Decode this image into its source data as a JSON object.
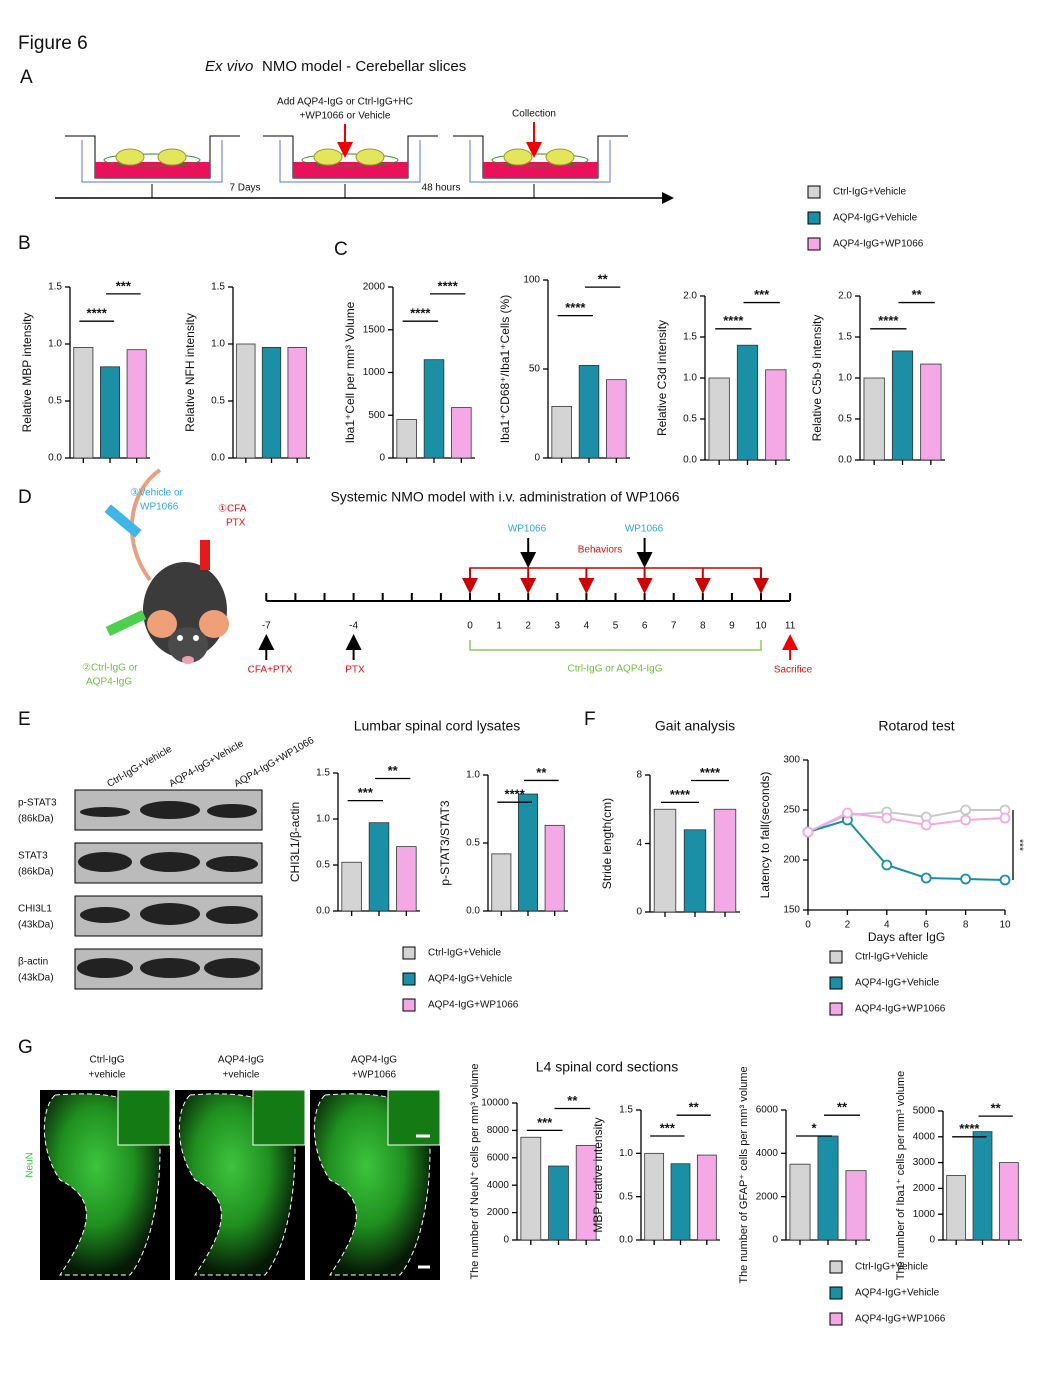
{
  "figure": {
    "title": "Figure 6",
    "panels": [
      "A",
      "B",
      "C",
      "D",
      "E",
      "F",
      "G"
    ],
    "legend": {
      "names": [
        "Ctrl-IgG+Vehicle",
        "AQP4-IgG+Vehicle",
        "AQP4-IgG+WP1066"
      ],
      "colors": [
        "#d4d4d4",
        "#1a8fa6",
        "#f4a9e6"
      ]
    },
    "a": {
      "title_italic": "Ex vivo",
      "title": "NMO model - Cerebellar slices",
      "add_label": [
        "Add AQP4-IgG or Ctrl-IgG+HC",
        "+WP1066 or Vehicle"
      ],
      "collection": "Collection",
      "durations": [
        "7 Days",
        "48 hours"
      ]
    },
    "d": {
      "title": "Systemic NMO model with i.v. administration of WP1066",
      "inject": [
        "③Vehicle or",
        "WP1066"
      ],
      "cfa": [
        "①CFA",
        "PTX"
      ],
      "igg": [
        "②Ctrl-IgG or",
        "AQP4-IgG"
      ],
      "days": [
        -7,
        -4,
        0,
        1,
        2,
        3,
        4,
        5,
        6,
        7,
        8,
        9,
        10,
        11
      ],
      "wp1066": "WP1066",
      "behaviors": "Behaviors",
      "cfa_ptx": "CFA+PTX",
      "ptx": "PTX",
      "treatment": "Ctrl-IgG or AQP4-IgG",
      "sacrifice": "Sacrifice"
    },
    "e": {
      "lanes": [
        "Ctrl-IgG+Vehicle",
        "AQP4-IgG+Vehicle",
        "AQP4-IgG+WP1066"
      ],
      "blots": [
        [
          "p-STAT3",
          "(86kDa)"
        ],
        [
          "STAT3",
          "(86kDa)"
        ],
        [
          "CHI3L1",
          "(43kDa)"
        ],
        [
          "β-actin",
          "(43kDa)"
        ]
      ],
      "title": "Lumbar spinal cord lysates"
    },
    "g": {
      "columns": [
        [
          "Ctrl-IgG",
          "+vehicle"
        ],
        [
          "AQP4-IgG",
          "+vehicle"
        ],
        [
          "AQP4-IgG",
          "+WP1066"
        ]
      ],
      "stain": "NeuN",
      "title": "L4 spinal cord sections"
    }
  },
  "chart_data": [
    {
      "type": "bar",
      "ylabel": "Relative MBP intensity",
      "categories": [
        null,
        null,
        null
      ],
      "values": [
        0.97,
        0.8,
        0.95
      ],
      "ylim": [
        0,
        1.5
      ],
      "yticks": [
        {
          "value": 0,
          "label": "0.0"
        },
        0.5,
        {
          "value": 1,
          "label": "1.0"
        },
        1.5
      ],
      "significance": [
        "****",
        "***"
      ]
    },
    {
      "type": "bar",
      "ylabel": "Relative NFH intensity",
      "categories": [
        null,
        null,
        null
      ],
      "values": [
        1.0,
        0.97,
        0.97
      ],
      "ylim": [
        0,
        1.5
      ],
      "yticks": [
        {
          "value": 0,
          "label": "0.0"
        },
        0.5,
        {
          "value": 1,
          "label": "1.0"
        },
        1.5
      ],
      "significance": []
    },
    {
      "type": "bar",
      "ylabel": "Iba1⁺Cell per mm³ Volume",
      "categories": [
        null,
        null,
        null
      ],
      "values": [
        450,
        1150,
        590
      ],
      "ylim": [
        0,
        2000
      ],
      "yticks": [
        0,
        500,
        1000,
        1500,
        2000
      ],
      "significance": [
        "****",
        "****"
      ]
    },
    {
      "type": "bar",
      "ylabel": "Iba1⁺CD68⁺/Iba1⁺Cells (%)",
      "categories": [
        null,
        null,
        null
      ],
      "values": [
        29,
        52,
        44
      ],
      "ylim": [
        0,
        100
      ],
      "yticks": [
        0,
        50,
        100
      ],
      "significance": [
        "****",
        "**"
      ]
    },
    {
      "type": "bar",
      "ylabel": "Relative C3d intensity",
      "categories": [
        null,
        null,
        null
      ],
      "values": [
        1.0,
        1.4,
        1.1
      ],
      "ylim": [
        0,
        2
      ],
      "yticks": [
        {
          "value": 0,
          "label": "0.0"
        },
        0.5,
        {
          "value": 1,
          "label": "1.0"
        },
        1.5,
        {
          "value": 2,
          "label": "2.0"
        }
      ],
      "significance": [
        "****",
        "***"
      ]
    },
    {
      "type": "bar",
      "ylabel": "Relative C5b-9 intensity",
      "categories": [
        null,
        null,
        null
      ],
      "values": [
        1.0,
        1.33,
        1.17
      ],
      "ylim": [
        0,
        2
      ],
      "yticks": [
        {
          "value": 0,
          "label": "0.0"
        },
        0.5,
        {
          "value": 1,
          "label": "1.0"
        },
        1.5,
        {
          "value": 2,
          "label": "2.0"
        }
      ],
      "significance": [
        "****",
        "**"
      ]
    },
    {
      "type": "bar",
      "ylabel": "CHI3L1/β-actin",
      "categories": [
        null,
        null,
        null
      ],
      "values": [
        0.53,
        0.96,
        0.7
      ],
      "ylim": [
        0,
        1.5
      ],
      "yticks": [
        {
          "value": 0,
          "label": "0.0"
        },
        0.5,
        {
          "value": 1,
          "label": "1.0"
        },
        1.5
      ],
      "significance": [
        "***",
        "**"
      ]
    },
    {
      "type": "bar",
      "ylabel": "p-STAT3/STAT3",
      "categories": [
        null,
        null,
        null
      ],
      "values": [
        0.42,
        0.86,
        0.63
      ],
      "ylim": [
        0,
        1
      ],
      "yticks": [
        {
          "value": 0,
          "label": "0.0"
        },
        0.5,
        {
          "value": 1,
          "label": "1.0"
        }
      ],
      "significance": [
        "****",
        "**"
      ]
    },
    {
      "type": "bar",
      "title": "Gait analysis",
      "ylabel": "Stride length(cm)",
      "categories": [
        null,
        null,
        null
      ],
      "values": [
        6,
        4.8,
        6
      ],
      "ylim": [
        0,
        8
      ],
      "yticks": [
        0,
        4,
        8
      ],
      "significance": [
        "****",
        "****"
      ]
    },
    {
      "type": "line",
      "title": "Rotarod test",
      "xlabel": "Days after IgG",
      "ylabel": "Latency to fall(seconds)",
      "x": [
        0,
        2,
        4,
        6,
        8,
        10
      ],
      "xlim": [
        0,
        10
      ],
      "xticks": [
        0,
        2,
        4,
        6,
        8,
        10
      ],
      "ylim": [
        150,
        300
      ],
      "yticks": [
        150,
        200,
        250,
        300
      ],
      "annotation": "***",
      "series": [
        {
          "name": "Ctrl-IgG+Vehicle",
          "color": "#c8c8c8",
          "values": [
            228,
            245,
            248,
            243,
            250,
            250
          ]
        },
        {
          "name": "AQP4-IgG+Vehicle",
          "color": "#1a8fa6",
          "values": [
            228,
            240,
            195,
            182,
            181,
            180
          ]
        },
        {
          "name": "AQP4-IgG+WP1066",
          "color": "#f4a9e6",
          "values": [
            228,
            247,
            242,
            235,
            240,
            242
          ]
        }
      ]
    },
    {
      "type": "bar",
      "ylabel": "The number of NeuN⁺ cells per mm³ volume",
      "categories": [
        null,
        null,
        null
      ],
      "values": [
        7500,
        5400,
        6900
      ],
      "ylim": [
        0,
        10000
      ],
      "yticks": [
        0,
        2000,
        4000,
        6000,
        8000,
        10000
      ],
      "significance": [
        "***",
        "**"
      ]
    },
    {
      "type": "bar",
      "ylabel": "MBP relative intensity",
      "categories": [
        null,
        null,
        null
      ],
      "values": [
        1.0,
        0.88,
        0.98
      ],
      "ylim": [
        0,
        1.5
      ],
      "yticks": [
        {
          "value": 0,
          "label": "0.0"
        },
        0.5,
        {
          "value": 1,
          "label": "1.0"
        },
        1.5
      ],
      "significance": [
        "***",
        "**"
      ]
    },
    {
      "type": "bar",
      "ylabel": "The number of GFAP⁺ cells per mm³ volume",
      "categories": [
        null,
        null,
        null
      ],
      "values": [
        3500,
        4800,
        3200
      ],
      "ylim": [
        0,
        6000
      ],
      "yticks": [
        0,
        2000,
        4000,
        6000
      ],
      "significance": [
        "*",
        "**"
      ]
    },
    {
      "type": "bar",
      "ylabel": "The number of Iba1⁺ cells per mm³ volume",
      "categories": [
        null,
        null,
        null
      ],
      "values": [
        2500,
        4200,
        3000
      ],
      "ylim": [
        0,
        5000
      ],
      "yticks": [
        0,
        1000,
        2000,
        3000,
        4000,
        5000
      ],
      "significance": [
        "****",
        "**"
      ]
    }
  ]
}
